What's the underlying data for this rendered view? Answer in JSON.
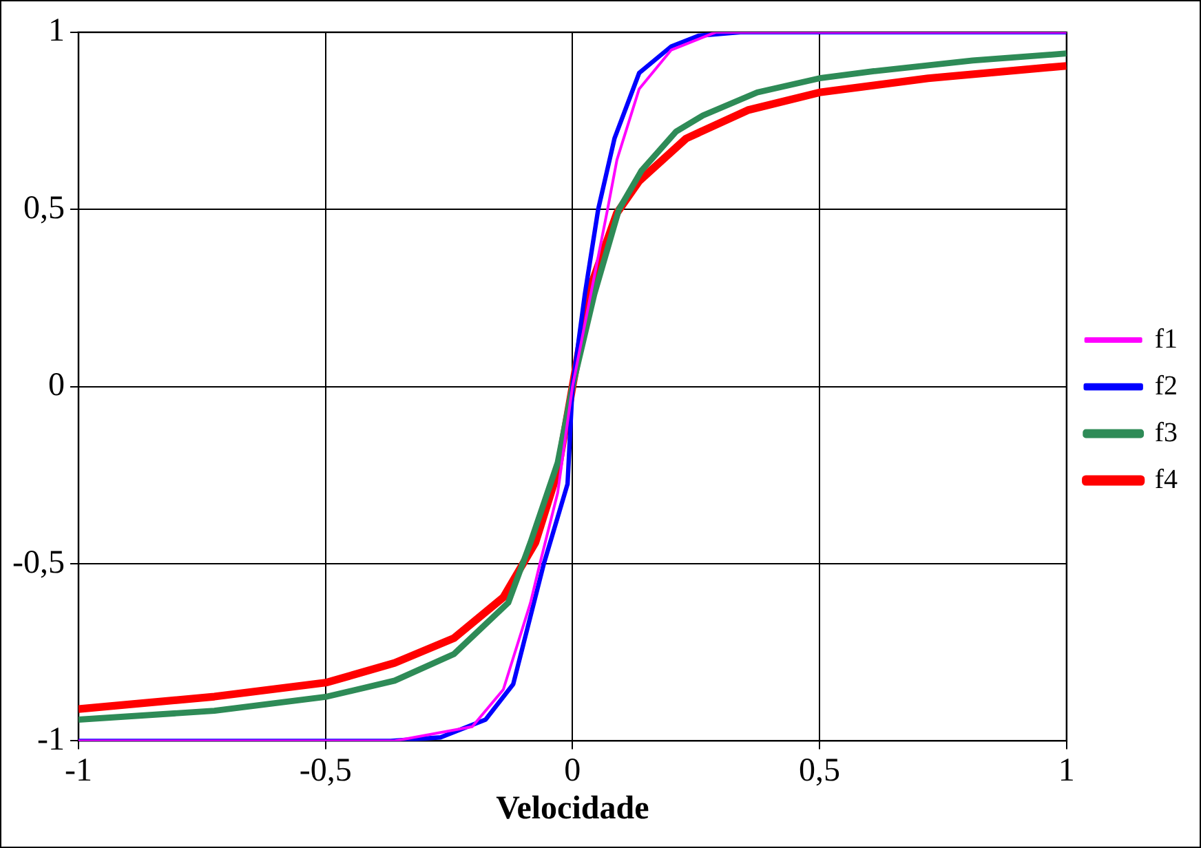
{
  "chart_data": {
    "type": "line",
    "xlabel": "Velocidade",
    "xlim": [
      -1,
      1
    ],
    "xticks": [
      -1,
      {
        "value": -0.5,
        "label": "-0,5"
      },
      0,
      {
        "value": 0.5,
        "label": "0,5"
      },
      1
    ],
    "ylim": [
      -1,
      1
    ],
    "yticks": [
      -1,
      {
        "value": -0.5,
        "label": "-0,5"
      },
      0,
      {
        "value": 0.5,
        "label": "0,5"
      },
      1
    ],
    "grid": true,
    "legend": "right",
    "marker": "none",
    "line_style": "solid",
    "series": [
      {
        "name": "f1",
        "color": "#ff00ff",
        "x": [
          -1,
          -0.36,
          -0.203,
          -0.14,
          -0.085,
          -0.066,
          -0.03,
          0,
          0.071,
          0.09,
          0.135,
          0.2,
          0.29,
          1
        ],
        "values": [
          -1,
          -1,
          -0.96,
          -0.855,
          -0.61,
          -0.5,
          -0.3,
          0,
          0.5,
          0.64,
          0.84,
          0.95,
          1,
          1
        ]
      },
      {
        "name": "f2",
        "color": "#0000ff",
        "x": [
          -1,
          -0.368,
          -0.267,
          -0.176,
          -0.12,
          -0.058,
          -0.01,
          0,
          0.025,
          0.052,
          0.085,
          0.135,
          0.2,
          0.255,
          0.34,
          1
        ],
        "values": [
          -1,
          -1,
          -0.99,
          -0.94,
          -0.84,
          -0.5,
          -0.275,
          0,
          0.26,
          0.5,
          0.7,
          0.885,
          0.96,
          0.99,
          1,
          1
        ]
      },
      {
        "name": "f3",
        "color": "#2e8b57",
        "x": [
          -1,
          -0.725,
          -0.497,
          -0.36,
          -0.24,
          -0.13,
          -0.085,
          -0.03,
          0,
          0.044,
          0.094,
          0.14,
          0.21,
          0.264,
          0.374,
          0.5,
          0.61,
          0.81,
          1
        ],
        "values": [
          -0.94,
          -0.915,
          -0.875,
          -0.83,
          -0.755,
          -0.61,
          -0.44,
          -0.215,
          0,
          0.26,
          0.5,
          0.61,
          0.72,
          0.765,
          0.83,
          0.87,
          0.89,
          0.92,
          0.94
        ]
      },
      {
        "name": "f4",
        "color": "#ff0000",
        "x": [
          -1,
          -0.725,
          -0.497,
          -0.36,
          -0.24,
          -0.14,
          -0.075,
          -0.03,
          0,
          0.035,
          0.09,
          0.135,
          0.23,
          0.355,
          0.5,
          0.72,
          1
        ],
        "values": [
          -0.91,
          -0.875,
          -0.835,
          -0.78,
          -0.71,
          -0.595,
          -0.44,
          -0.24,
          0,
          0.275,
          0.49,
          0.58,
          0.7,
          0.78,
          0.83,
          0.87,
          0.905
        ]
      }
    ]
  }
}
